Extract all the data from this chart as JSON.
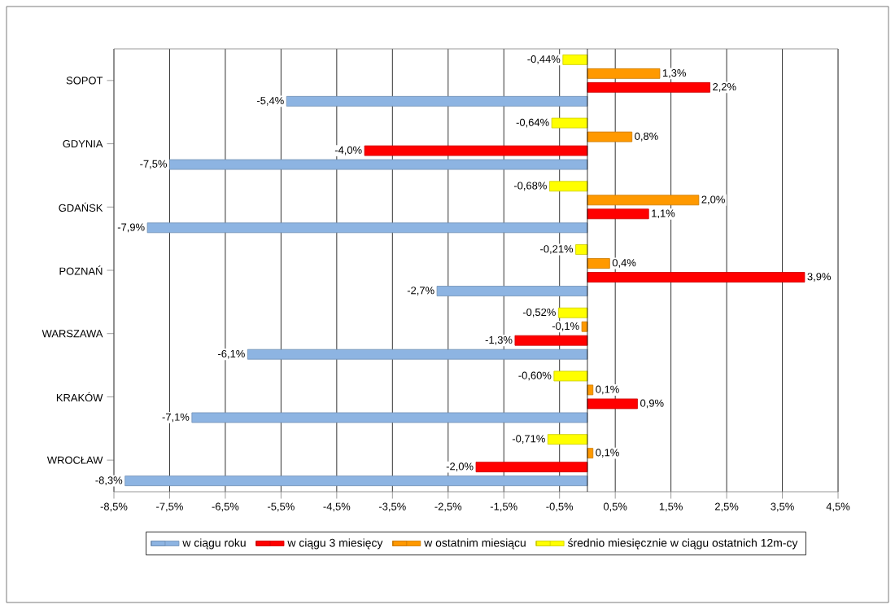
{
  "chart_data": {
    "type": "bar",
    "orientation": "horizontal",
    "categories": [
      "SOPOT",
      "GDYNIA",
      "GDAŃSK",
      "POZNAŃ",
      "WARSZAWA",
      "KRAKÓW",
      "WROCŁAW"
    ],
    "series": [
      {
        "name": "w ciągu roku",
        "color": "#8db4e2",
        "values": [
          -5.4,
          -7.5,
          -7.9,
          -2.7,
          -6.1,
          -7.1,
          -8.3
        ],
        "value_labels": [
          "-5,4%",
          "-7,5%",
          "-7,9%",
          "-2,7%",
          "-6,1%",
          "-7,1%",
          "-8,3%"
        ]
      },
      {
        "name": "w ciągu 3 miesięcy",
        "color": "#ff0000",
        "values": [
          2.2,
          -4.0,
          1.1,
          3.9,
          -1.3,
          0.9,
          -2.0
        ],
        "value_labels": [
          "2,2%",
          "-4,0%",
          "1,1%",
          "3,9%",
          "-1,3%",
          "0,9%",
          "-2,0%"
        ]
      },
      {
        "name": "w ostatnim miesiącu",
        "color": "#ff9900",
        "values": [
          1.3,
          0.8,
          2.0,
          0.4,
          -0.1,
          0.1,
          0.1
        ],
        "value_labels": [
          "1,3%",
          "0,8%",
          "2,0%",
          "0,4%",
          "-0,1%",
          "0,1%",
          "0,1%"
        ]
      },
      {
        "name": "średnio miesięcznie w ciągu ostatnich 12m-cy",
        "color": "#ffff00",
        "values": [
          -0.44,
          -0.64,
          -0.68,
          -0.21,
          -0.52,
          -0.6,
          -0.71
        ],
        "value_labels": [
          "-0,44%",
          "-0,64%",
          "-0,68%",
          "-0,21%",
          "-0,52%",
          "-0,60%",
          "-0,71%"
        ]
      }
    ],
    "xlim": [
      -8.5,
      4.5
    ],
    "xticks": [
      {
        "value": -8.5,
        "label": "-8,5%"
      },
      {
        "value": -7.5,
        "label": "-7,5%"
      },
      {
        "value": -6.5,
        "label": "-6,5%"
      },
      {
        "value": -5.5,
        "label": "-5,5%"
      },
      {
        "value": -4.5,
        "label": "-4,5%"
      },
      {
        "value": -3.5,
        "label": "-3,5%"
      },
      {
        "value": -2.5,
        "label": "-2,5%"
      },
      {
        "value": -1.5,
        "label": "-1,5%"
      },
      {
        "value": -0.5,
        "label": "-0,5%"
      },
      {
        "value": 0.5,
        "label": "0,5%"
      },
      {
        "value": 1.5,
        "label": "1,5%"
      },
      {
        "value": 2.5,
        "label": "2,5%"
      },
      {
        "value": 3.5,
        "label": "3,5%"
      },
      {
        "value": 4.5,
        "label": "4,5%"
      }
    ],
    "grid": "x",
    "legend": "bottom"
  }
}
